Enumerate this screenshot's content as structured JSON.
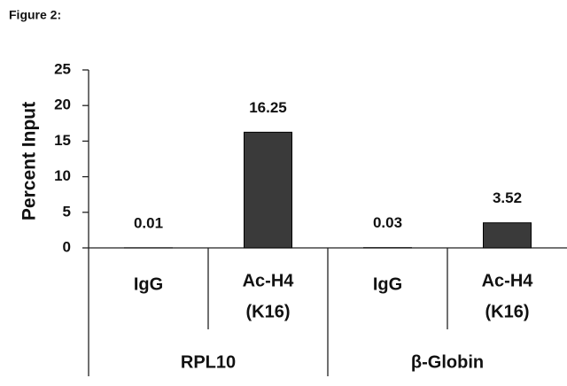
{
  "chart_data": {
    "type": "bar",
    "title": "Figure 2:",
    "y_label": "Percent Input",
    "groups": [
      {
        "name": "RPL10",
        "categories": [
          [
            "IgG"
          ],
          [
            "Ac-H4",
            "(K16)"
          ]
        ],
        "values": [
          0.01,
          16.25
        ]
      },
      {
        "name": "β-Globin",
        "categories": [
          [
            "IgG"
          ],
          [
            "Ac-H4",
            "(K16)"
          ]
        ],
        "values": [
          0.03,
          3.52
        ]
      }
    ],
    "color": "#3a3a3a",
    "ylim": [
      0,
      25
    ],
    "yticks": [
      0,
      5,
      10,
      15,
      20,
      25
    ],
    "grid": false
  }
}
